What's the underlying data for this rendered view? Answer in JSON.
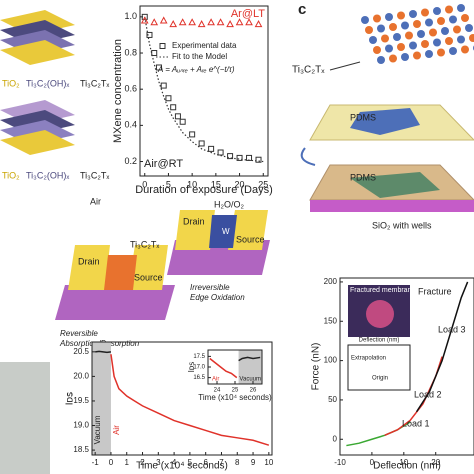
{
  "panel_label": "c",
  "stack_labels": [
    [
      "TiO₂",
      "Ti₃C₂(OH)ₓ",
      "Ti₃C₂Tₓ"
    ],
    [
      "TiO₂",
      "Ti₃C₂(OH)ₓ",
      "Ti₃C₂Tₓ"
    ]
  ],
  "device": {
    "air": "Air",
    "gas": "H₂O/O₂",
    "drain_left": "Drain",
    "source_left": "Source",
    "drain_right": "Drain",
    "source_right": "Source",
    "width": "W",
    "material": "Ti₃C₂Tₓ",
    "caption_left": [
      "Reversible",
      "Absorption/Desorption"
    ],
    "caption_right": [
      "Irreversible",
      "Edge Oxidation"
    ]
  },
  "transfer": {
    "material": "Ti₃C₂Tₓ",
    "pdms_top": "PDMS",
    "pdms_bottom": "PDMS",
    "substrate": "SiO₂ with wells"
  },
  "chart_data": [
    {
      "type": "scatter",
      "xlabel": "Duration of exposure (Days)",
      "ylabel": "MXene concentration",
      "xlim": [
        -1,
        26
      ],
      "ylim": [
        0.12,
        1.06
      ],
      "xticks": [
        0,
        5,
        10,
        15,
        20,
        25
      ],
      "yticks": [
        0.2,
        0.4,
        0.6,
        0.8,
        {
          "value": 1,
          "label": "1.0"
        }
      ],
      "series": [
        {
          "name": "Experimental data",
          "marker": "square",
          "color": "#333333",
          "x": [
            0,
            1,
            2,
            3,
            4,
            5,
            6,
            7,
            8,
            10,
            12,
            14,
            16,
            18,
            20,
            22,
            24
          ],
          "values": [
            1.0,
            0.9,
            0.8,
            0.72,
            0.62,
            0.55,
            0.5,
            0.45,
            0.42,
            0.35,
            0.3,
            0.27,
            0.25,
            0.23,
            0.22,
            0.22,
            0.21
          ]
        },
        {
          "name": "Fit to the Model",
          "marker": "dotted",
          "color": "#333333",
          "x": [
            0,
            1,
            2,
            3,
            4,
            5,
            6,
            8,
            10,
            12,
            15,
            18,
            21,
            25
          ],
          "values": [
            1.0,
            0.85,
            0.74,
            0.64,
            0.56,
            0.49,
            0.44,
            0.36,
            0.31,
            0.27,
            0.24,
            0.22,
            0.21,
            0.2
          ]
        },
        {
          "name": "Ar@LT",
          "marker": "triangle",
          "color": "#e0322a",
          "x": [
            0,
            2,
            4,
            6,
            8,
            10,
            12,
            14,
            16,
            18,
            20,
            22,
            24
          ],
          "values": [
            0.98,
            0.97,
            0.98,
            0.96,
            0.97,
            0.97,
            0.96,
            0.97,
            0.97,
            0.96,
            0.97,
            0.97,
            0.96
          ]
        }
      ],
      "annotations": [
        "A = Aᵤₙᵣₑ + Aᵣₑ e^(−t/τ)",
        "Air@RT"
      ]
    },
    {
      "type": "line",
      "xlabel": "Time (x10⁴ seconds)",
      "ylabel": "Iᴅꜱ",
      "xlim": [
        -1.2,
        10.2
      ],
      "ylim": [
        18.4,
        20.7
      ],
      "xticks": [
        -1,
        0,
        1,
        2,
        3,
        4,
        5,
        6,
        7,
        8,
        9,
        10
      ],
      "yticks": [
        18.5,
        {
          "value": 19,
          "label": "19.0"
        },
        19.5,
        {
          "value": 20,
          "label": "20.0"
        },
        20.5
      ],
      "series": [
        {
          "name": "Vacuum",
          "color": "#222222",
          "shaded": true,
          "x": [
            -1,
            -0.75,
            -0.5,
            -0.25,
            0
          ],
          "values": [
            20.5,
            20.51,
            20.5,
            20.49,
            20.5
          ]
        },
        {
          "name": "Air",
          "color": "#e0322a",
          "x": [
            0,
            0.2,
            0.5,
            1,
            1.5,
            2,
            3,
            4,
            5,
            6,
            7,
            8,
            9,
            10
          ],
          "values": [
            20.45,
            20.0,
            19.75,
            19.6,
            19.5,
            19.4,
            19.25,
            19.1,
            19.0,
            18.9,
            18.8,
            18.75,
            18.7,
            18.6
          ]
        }
      ]
    },
    {
      "type": "line",
      "xlabel": "Time (x10⁴ seconds)",
      "ylabel": "Iᴅꜱ",
      "xlim": [
        23.5,
        26.5
      ],
      "ylim": [
        16.2,
        17.8
      ],
      "xticks": [
        24,
        25,
        26
      ],
      "yticks": [
        16.5,
        {
          "value": 17,
          "label": "17.0"
        },
        17.5
      ],
      "series": [
        {
          "name": "Air",
          "color": "#e0322a",
          "x": [
            23.6,
            23.9,
            24.2,
            24.5,
            24.8,
            25.1
          ],
          "values": [
            17.4,
            17.2,
            17.0,
            16.8,
            16.7,
            16.5
          ]
        },
        {
          "name": "Vacuum",
          "color": "#222222",
          "shaded": true,
          "x": [
            25.2,
            25.4,
            25.7,
            26.0,
            26.4
          ],
          "values": [
            17.3,
            17.4,
            17.45,
            17.4,
            17.45
          ]
        }
      ]
    },
    {
      "type": "line",
      "xlabel": "Deflection (nm)",
      "ylabel": "Force (nN)",
      "xlim": [
        -10,
        32
      ],
      "ylim": [
        -20,
        205
      ],
      "xticks": [
        -10,
        0,
        10,
        20
      ],
      "yticks": [
        0,
        50,
        100,
        150,
        200
      ],
      "series": [
        {
          "name": "Load 1",
          "color": "#3aa832",
          "x": [
            -8,
            -4,
            0,
            4,
            8,
            12
          ],
          "values": [
            -8,
            -5,
            0,
            5,
            12,
            22
          ]
        },
        {
          "name": "Load 2",
          "color": "#e0322a",
          "x": [
            4,
            8,
            12,
            16,
            20,
            22
          ],
          "values": [
            5,
            12,
            24,
            45,
            80,
            105
          ]
        },
        {
          "name": "Load 3",
          "color": "#111111",
          "x": [
            14,
            18,
            22,
            25,
            28,
            30
          ],
          "values": [
            35,
            60,
            100,
            140,
            180,
            200
          ]
        }
      ],
      "annotations": [
        "Fracture",
        "Fractured membrane",
        "Extrapolation",
        "Origin",
        "Deflection (nm)"
      ]
    }
  ]
}
